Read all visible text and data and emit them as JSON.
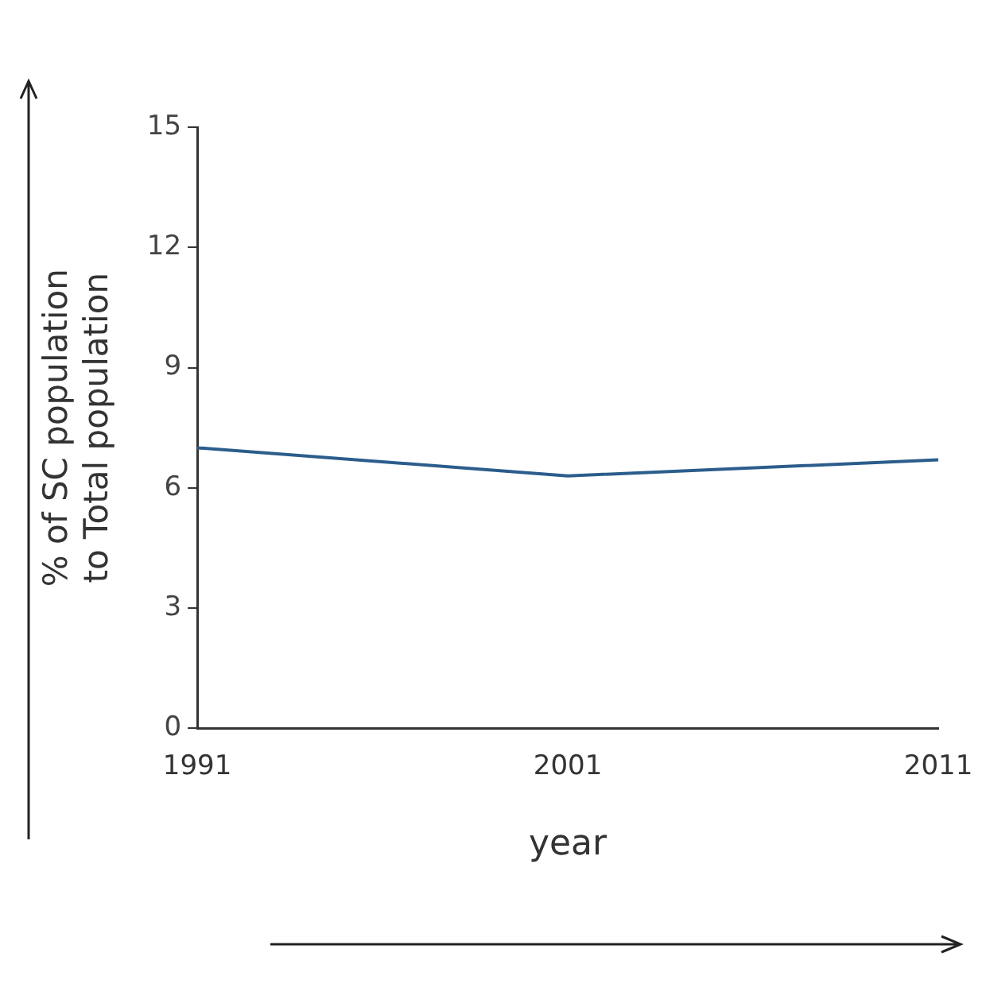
{
  "chart_data": {
    "type": "line",
    "xlabel": "year",
    "ylabel": "% of SC population to Total population",
    "categories": [
      "1991",
      "2001",
      "2011"
    ],
    "series": [
      {
        "color": "#2b5d8c",
        "values": [
          7.0,
          6.3,
          6.7
        ]
      }
    ],
    "ylim": [
      0,
      15
    ],
    "yticks": [
      0,
      3,
      6,
      9,
      12,
      15
    ],
    "grid": false,
    "legend": false,
    "marker": "none",
    "line_style": "solid"
  }
}
